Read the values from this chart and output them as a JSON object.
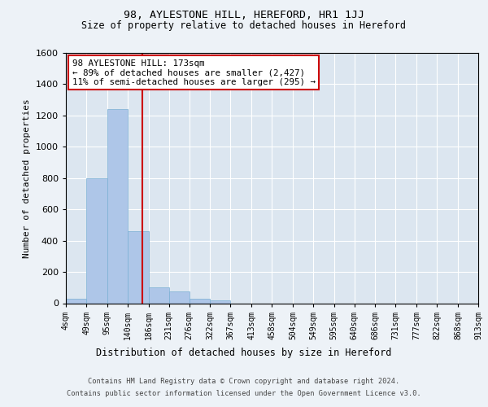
{
  "title": "98, AYLESTONE HILL, HEREFORD, HR1 1JJ",
  "subtitle": "Size of property relative to detached houses in Hereford",
  "xlabel": "Distribution of detached houses by size in Hereford",
  "ylabel": "Number of detached properties",
  "bin_edges": [
    4,
    49,
    95,
    140,
    186,
    231,
    276,
    322,
    367,
    413,
    458,
    504,
    549,
    595,
    640,
    686,
    731,
    777,
    822,
    868,
    913
  ],
  "bin_labels": [
    "4sqm",
    "49sqm",
    "95sqm",
    "140sqm",
    "186sqm",
    "231sqm",
    "276sqm",
    "322sqm",
    "367sqm",
    "413sqm",
    "458sqm",
    "504sqm",
    "549sqm",
    "595sqm",
    "640sqm",
    "686sqm",
    "731sqm",
    "777sqm",
    "822sqm",
    "868sqm",
    "913sqm"
  ],
  "counts": [
    30,
    800,
    1240,
    460,
    100,
    75,
    30,
    20,
    0,
    0,
    0,
    0,
    0,
    0,
    0,
    0,
    0,
    0,
    0,
    0
  ],
  "bar_color": "#aec6e8",
  "bar_edge_color": "#7aafd4",
  "vline_x": 173,
  "vline_color": "#cc0000",
  "ylim": [
    0,
    1600
  ],
  "yticks": [
    0,
    200,
    400,
    600,
    800,
    1000,
    1200,
    1400,
    1600
  ],
  "annotation_box_text": "98 AYLESTONE HILL: 173sqm\n← 89% of detached houses are smaller (2,427)\n11% of semi-detached houses are larger (295) →",
  "annotation_box_color": "#cc0000",
  "footer_line1": "Contains HM Land Registry data © Crown copyright and database right 2024.",
  "footer_line2": "Contains public sector information licensed under the Open Government Licence v3.0.",
  "fig_bg_color": "#edf2f7",
  "plot_bg_color": "#dce6f0"
}
